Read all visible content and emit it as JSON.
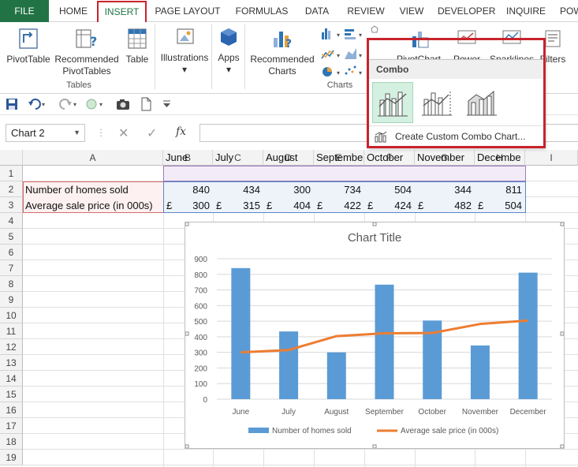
{
  "tabs": [
    "FILE",
    "HOME",
    "INSERT",
    "PAGE LAYOUT",
    "FORMULAS",
    "DATA",
    "REVIEW",
    "VIEW",
    "DEVELOPER",
    "INQUIRE",
    "POW"
  ],
  "ribbon": {
    "pivottable": "PivotTable",
    "recommended_pivot_l1": "Recommended",
    "recommended_pivot_l2": "PivotTables",
    "table": "Table",
    "tables_group": "Tables",
    "illustrations": "Illustrations",
    "apps": "Apps",
    "recommended_charts_l1": "Recommended",
    "recommended_charts_l2": "Charts",
    "charts_group": "Charts",
    "pivotchart": "PivotChart",
    "power": "Power",
    "sparklines": "Sparklines",
    "filters": "Filters"
  },
  "combo_menu": {
    "header": "Combo",
    "create_custom": "Create Custom Combo Chart..."
  },
  "namebox": "Chart 2",
  "fx_label": "fx",
  "columns": [
    "A",
    "B",
    "C",
    "D",
    "E",
    "F",
    "G",
    "H",
    "I"
  ],
  "rows": [
    "1",
    "2",
    "3",
    "4",
    "5",
    "6",
    "7",
    "8",
    "9",
    "10",
    "11",
    "12",
    "13",
    "14",
    "15",
    "16",
    "17",
    "18",
    "19"
  ],
  "sheet": {
    "months": [
      "June",
      "July",
      "August",
      "Septembe",
      "October",
      "November",
      "Decembe"
    ],
    "row2_label": "Number of homes sold",
    "row3_label": "Average sale price (in 000s)",
    "homes": [
      "840",
      "434",
      "300",
      "734",
      "504",
      "344",
      "811"
    ],
    "currency": "£",
    "prices": [
      "300",
      "315",
      "404",
      "422",
      "424",
      "482",
      "504"
    ]
  },
  "chart_data": {
    "type": "bar",
    "title": "Chart Title",
    "categories": [
      "June",
      "July",
      "August",
      "September",
      "October",
      "November",
      "December"
    ],
    "series": [
      {
        "name": "Number of homes sold",
        "type": "bar",
        "color": "#5b9bd5",
        "values": [
          840,
          434,
          300,
          734,
          504,
          344,
          811
        ]
      },
      {
        "name": "Average sale price (in 000s)",
        "type": "line",
        "color": "#ed7d31",
        "values": [
          300,
          315,
          404,
          422,
          424,
          482,
          504
        ]
      }
    ],
    "yticks": [
      "0",
      "100",
      "200",
      "300",
      "400",
      "500",
      "600",
      "700",
      "800",
      "900"
    ],
    "ylim": [
      0,
      900
    ],
    "grid": true,
    "legend": "bottom"
  },
  "colors": {
    "excel_green": "#217346",
    "highlight_red": "#c8232c",
    "bar_blue": "#5b9bd5",
    "line_orange": "#ed7d31"
  }
}
